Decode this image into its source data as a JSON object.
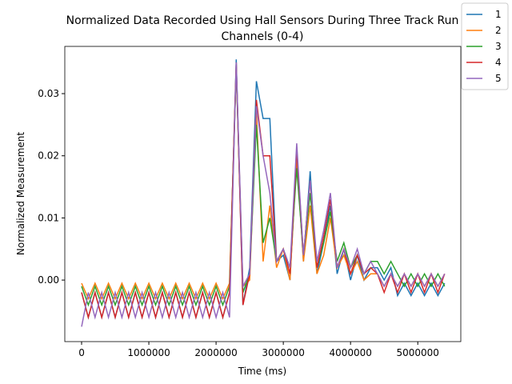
{
  "chart_data": {
    "type": "line",
    "title": [
      "Normalized Data Recorded Using Hall Sensors During Three Track Run",
      "Channels (0-4)"
    ],
    "xlabel": "Time (ms)",
    "ylabel": "Normalized Measurement",
    "x": [
      0,
      100000,
      200000,
      300000,
      400000,
      500000,
      600000,
      700000,
      800000,
      900000,
      1000000,
      1100000,
      1200000,
      1300000,
      1400000,
      1500000,
      1600000,
      1700000,
      1800000,
      1900000,
      2000000,
      2100000,
      2200000,
      2300000,
      2400000,
      2500000,
      2600000,
      2700000,
      2800000,
      2900000,
      3000000,
      3100000,
      3200000,
      3300000,
      3400000,
      3500000,
      3600000,
      3700000,
      3800000,
      3900000,
      4000000,
      4100000,
      4200000,
      4300000,
      4400000,
      4500000,
      4600000,
      4700000,
      4800000,
      4900000,
      5000000,
      5100000,
      5200000,
      5300000,
      5400000
    ],
    "series": [
      {
        "name": "1",
        "color": "#1f77b4",
        "values": [
          -0.002,
          -0.006,
          -0.002,
          -0.006,
          -0.002,
          -0.006,
          -0.002,
          -0.006,
          -0.002,
          -0.006,
          -0.002,
          -0.006,
          -0.002,
          -0.006,
          -0.002,
          -0.006,
          -0.002,
          -0.006,
          -0.002,
          -0.006,
          -0.002,
          -0.006,
          -0.002,
          0.0355,
          -0.004,
          0.002,
          0.032,
          0.026,
          0.026,
          0.003,
          0.004,
          0.0,
          0.02,
          0.003,
          0.0175,
          0.001,
          0.006,
          0.012,
          0.001,
          0.005,
          0.0,
          0.004,
          0.0,
          0.002,
          0.002,
          0.0,
          0.002,
          -0.0025,
          -0.0005,
          -0.0025,
          -0.0005,
          -0.0025,
          -0.0005,
          -0.0025,
          -0.0005
        ]
      },
      {
        "name": "2",
        "color": "#ff7f0e",
        "values": [
          -0.0005,
          -0.003,
          -0.0005,
          -0.003,
          -0.0005,
          -0.003,
          -0.0005,
          -0.003,
          -0.0005,
          -0.003,
          -0.0005,
          -0.003,
          -0.0005,
          -0.003,
          -0.0005,
          -0.003,
          -0.0005,
          -0.003,
          -0.0005,
          -0.003,
          -0.0005,
          -0.003,
          -0.0005,
          0.034,
          -0.001,
          0.0,
          0.027,
          0.003,
          0.012,
          0.002,
          0.005,
          0.0,
          0.02,
          0.003,
          0.012,
          0.001,
          0.004,
          0.01,
          0.002,
          0.004,
          0.001,
          0.003,
          0.0,
          0.001,
          0.001,
          -0.001,
          0.001,
          -0.001,
          0.001,
          -0.001,
          0.001,
          -0.001,
          0.001,
          -0.001,
          0.001
        ]
      },
      {
        "name": "3",
        "color": "#2ca02c",
        "values": [
          -0.001,
          -0.004,
          -0.001,
          -0.004,
          -0.001,
          -0.004,
          -0.001,
          -0.004,
          -0.001,
          -0.004,
          -0.001,
          -0.004,
          -0.001,
          -0.004,
          -0.001,
          -0.004,
          -0.001,
          -0.004,
          -0.001,
          -0.004,
          -0.001,
          -0.004,
          -0.001,
          0.034,
          -0.002,
          0.001,
          0.025,
          0.006,
          0.01,
          0.003,
          0.005,
          0.002,
          0.018,
          0.004,
          0.014,
          0.002,
          0.006,
          0.011,
          0.003,
          0.006,
          0.002,
          0.004,
          0.001,
          0.003,
          0.003,
          0.001,
          0.003,
          0.001,
          -0.001,
          0.001,
          -0.001,
          0.001,
          -0.001,
          0.001,
          -0.001
        ]
      },
      {
        "name": "4",
        "color": "#d62728",
        "values": [
          -0.002,
          -0.006,
          -0.002,
          -0.006,
          -0.002,
          -0.006,
          -0.002,
          -0.006,
          -0.002,
          -0.006,
          -0.002,
          -0.006,
          -0.002,
          -0.006,
          -0.002,
          -0.006,
          -0.002,
          -0.006,
          -0.002,
          -0.006,
          -0.002,
          -0.006,
          -0.002,
          0.035,
          -0.004,
          0.001,
          0.029,
          0.02,
          0.02,
          0.003,
          0.005,
          0.001,
          0.021,
          0.004,
          0.016,
          0.002,
          0.007,
          0.013,
          0.002,
          0.005,
          0.001,
          0.004,
          0.001,
          0.002,
          0.001,
          -0.002,
          0.001,
          -0.002,
          0.001,
          -0.002,
          0.001,
          -0.002,
          0.001,
          -0.002,
          0.001
        ]
      },
      {
        "name": "5",
        "color": "#9467bd",
        "values": [
          -0.0075,
          -0.002,
          -0.006,
          -0.002,
          -0.006,
          -0.002,
          -0.006,
          -0.002,
          -0.006,
          -0.002,
          -0.006,
          -0.002,
          -0.006,
          -0.002,
          -0.006,
          -0.002,
          -0.006,
          -0.002,
          -0.006,
          -0.002,
          -0.006,
          -0.002,
          -0.006,
          0.035,
          -0.001,
          0.001,
          0.028,
          0.02,
          0.014,
          0.003,
          0.005,
          0.002,
          0.022,
          0.004,
          0.016,
          0.003,
          0.008,
          0.014,
          0.002,
          0.005,
          0.002,
          0.005,
          0.001,
          0.003,
          0.001,
          -0.001,
          0.001,
          -0.001,
          0.001,
          -0.001,
          0.001,
          -0.001,
          0.001,
          -0.001,
          0.001
        ]
      }
    ],
    "xlim": [
      -250000,
      5640000
    ],
    "ylim": [
      -0.0099,
      0.0376
    ],
    "xticks": [
      0,
      1000000,
      2000000,
      3000000,
      4000000,
      5000000
    ],
    "yticks": [
      {
        "value": 0,
        "label": "0.00"
      },
      {
        "value": 0.01,
        "label": "0.01"
      },
      {
        "value": 0.02,
        "label": "0.02"
      },
      {
        "value": 0.03,
        "label": "0.03"
      }
    ],
    "legend": "upper right"
  }
}
